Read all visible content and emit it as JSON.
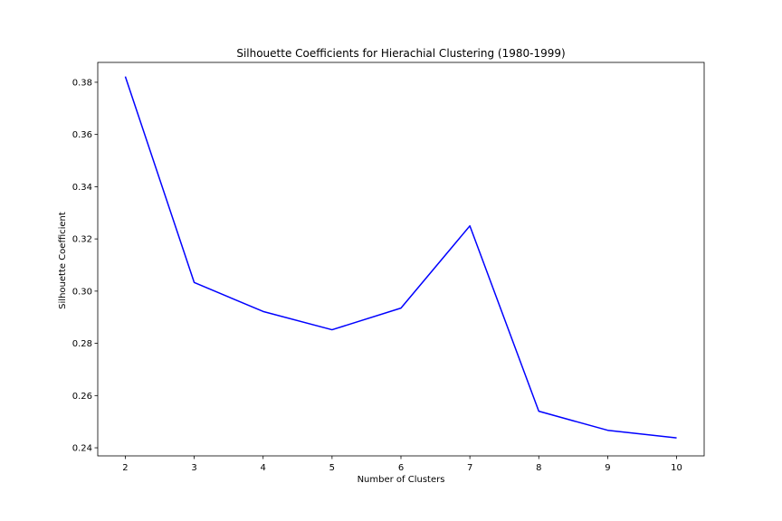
{
  "chart_data": {
    "type": "line",
    "title": "Silhouette Coefficients for Hierachial Clustering (1980-1999)",
    "xlabel": "Number of Clusters",
    "ylabel": "Silhouette Coefficient",
    "x": [
      2,
      3,
      4,
      5,
      6,
      7,
      8,
      9,
      10
    ],
    "series": [
      {
        "values": [
          0.3822,
          0.3033,
          0.2922,
          0.2852,
          0.2935,
          0.325,
          0.254,
          0.2467,
          0.2438
        ],
        "color": "#0000ff"
      }
    ],
    "xlim": [
      1.6,
      10.4
    ],
    "ylim": [
      0.2369,
      0.3876
    ],
    "xticks": [
      2,
      3,
      4,
      5,
      6,
      7,
      8,
      9,
      10
    ],
    "xtick_labels": [
      "2",
      "3",
      "4",
      "5",
      "6",
      "7",
      "8",
      "9",
      "10"
    ],
    "yticks": [
      0.24,
      0.26,
      0.28,
      0.3,
      0.32,
      0.34,
      0.36,
      0.38
    ],
    "ytick_labels": [
      "0.24",
      "0.26",
      "0.28",
      "0.30",
      "0.32",
      "0.34",
      "0.36",
      "0.38"
    ],
    "grid": false,
    "legend": "none"
  }
}
